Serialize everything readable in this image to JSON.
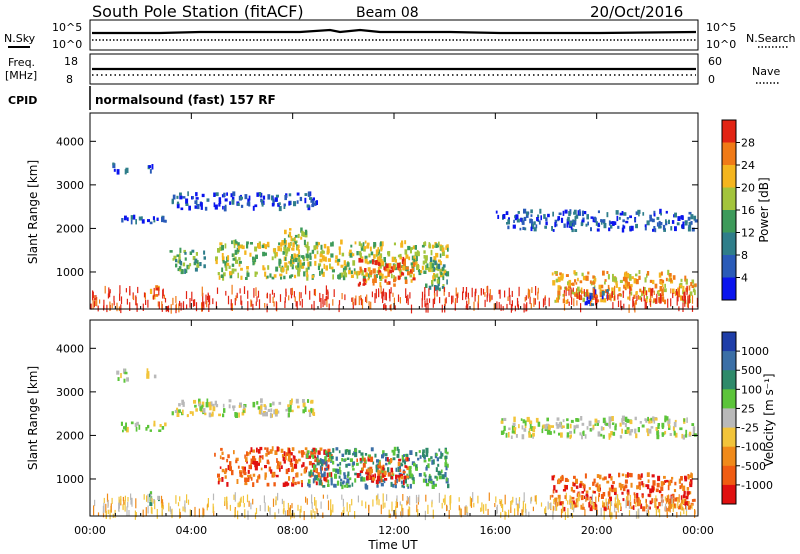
{
  "header": {
    "title": "South Pole Station (fitACF)",
    "beam": "Beam 08",
    "date": "20/Oct/2016"
  },
  "status_panels": {
    "nsky_label": "N.Sky",
    "nsky_ticks": [
      "10^5",
      "10^0"
    ],
    "nsearch_label": "N.Search",
    "nsearch_ticks": [
      "10^5",
      "10^0"
    ],
    "freq_label": "Freq.",
    "freq_unit": "[MHz]",
    "freq_ticks": [
      "18",
      "8"
    ],
    "nave_label": "Nave",
    "nave_ticks": [
      "60",
      "0"
    ],
    "cpid_label": "CPID",
    "cpid_value": "normalsound (fast) 157 RF"
  },
  "chart_data": [
    {
      "type": "heatmap",
      "name": "power-panel",
      "ylabel": "Slant Range [km]",
      "ylim": [
        150,
        4650
      ],
      "yticks": [
        1000,
        2000,
        3000,
        4000
      ],
      "xlim": [
        0,
        24
      ],
      "colorbar": {
        "label": "Power [dB]",
        "ticks": [
          "4",
          "8",
          "12",
          "16",
          "20",
          "24",
          "28"
        ],
        "colors": [
          "#0a14ee",
          "#2a5bb8",
          "#2f7e8a",
          "#3d9a5a",
          "#a3c43c",
          "#f4b51e",
          "#f07a17",
          "#e22414"
        ]
      },
      "regions": [
        {
          "t0": 0.85,
          "t1": 1.45,
          "r0": 3250,
          "r1": 3500,
          "level": 1
        },
        {
          "t0": 2.15,
          "t1": 2.55,
          "r0": 3300,
          "r1": 3500,
          "level": 1
        },
        {
          "t0": 1.2,
          "t1": 3.0,
          "r0": 2100,
          "r1": 2300,
          "level": 1
        },
        {
          "t0": 3.2,
          "t1": 9.0,
          "r0": 2450,
          "r1": 2800,
          "level": 1
        },
        {
          "t0": 2.3,
          "t1": 2.7,
          "r0": 400,
          "r1": 700,
          "level": 6
        },
        {
          "t0": 3.0,
          "t1": 4.5,
          "r0": 1000,
          "r1": 1500,
          "level": 3
        },
        {
          "t0": 4.9,
          "t1": 14.1,
          "r0": 850,
          "r1": 1700,
          "level": 4
        },
        {
          "t0": 7.6,
          "t1": 8.6,
          "r0": 1100,
          "r1": 2000,
          "level": 4
        },
        {
          "t0": 10.5,
          "t1": 12.8,
          "r0": 700,
          "r1": 1300,
          "level": 6
        },
        {
          "t0": 13.2,
          "t1": 14.1,
          "r0": 600,
          "r1": 1300,
          "level": 3
        },
        {
          "t0": 16.0,
          "t1": 23.9,
          "r0": 1950,
          "r1": 2400,
          "level": 1
        },
        {
          "t0": 18.2,
          "t1": 23.9,
          "r0": 300,
          "r1": 1000,
          "level": 5
        },
        {
          "t0": 19.5,
          "t1": 20.5,
          "r0": 250,
          "r1": 600,
          "level": 1
        },
        {
          "t0": 0.0,
          "t1": 24.0,
          "r0": 150,
          "r1": 600,
          "level": 7
        }
      ]
    },
    {
      "type": "heatmap",
      "name": "velocity-panel",
      "ylabel": "Slant Range [km]",
      "xlabel": "Time UT",
      "ylim": [
        150,
        4650
      ],
      "yticks": [
        1000,
        2000,
        3000,
        4000
      ],
      "xlim": [
        0,
        24
      ],
      "xticks": [
        "00:00",
        "04:00",
        "08:00",
        "12:00",
        "16:00",
        "20:00",
        "00:00"
      ],
      "colorbar": {
        "label": "Velocity [m s⁻¹]",
        "ticks": [
          "1000",
          "500",
          "100",
          "25",
          "-25",
          "-100",
          "-500",
          "-1000"
        ],
        "colors": [
          "#1f3ea8",
          "#3b6fa6",
          "#2e8a6a",
          "#5cc43a",
          "#b9b9b9",
          "#f2c43a",
          "#f08a1a",
          "#f05c12",
          "#e01010"
        ]
      },
      "regions": [
        {
          "t0": 0.85,
          "t1": 1.45,
          "r0": 3250,
          "r1": 3500,
          "level": 4
        },
        {
          "t0": 2.15,
          "t1": 2.55,
          "r0": 3300,
          "r1": 3500,
          "level": 4
        },
        {
          "t0": 1.2,
          "t1": 3.0,
          "r0": 2100,
          "r1": 2300,
          "level": 4
        },
        {
          "t0": 3.2,
          "t1": 9.0,
          "r0": 2450,
          "r1": 2800,
          "level": 4
        },
        {
          "t0": 2.3,
          "t1": 2.7,
          "r0": 400,
          "r1": 700,
          "level": 3
        },
        {
          "t0": 4.9,
          "t1": 9.5,
          "r0": 850,
          "r1": 1700,
          "level": 7
        },
        {
          "t0": 8.5,
          "t1": 14.1,
          "r0": 800,
          "r1": 1700,
          "level": 2
        },
        {
          "t0": 10.5,
          "t1": 12.5,
          "r0": 900,
          "r1": 1500,
          "level": 7
        },
        {
          "t0": 16.0,
          "t1": 23.9,
          "r0": 1950,
          "r1": 2400,
          "level": 4
        },
        {
          "t0": 18.2,
          "t1": 23.9,
          "r0": 300,
          "r1": 1100,
          "level": 7
        },
        {
          "t0": 0.0,
          "t1": 24.0,
          "r0": 150,
          "r1": 600,
          "level": 5
        }
      ]
    }
  ]
}
